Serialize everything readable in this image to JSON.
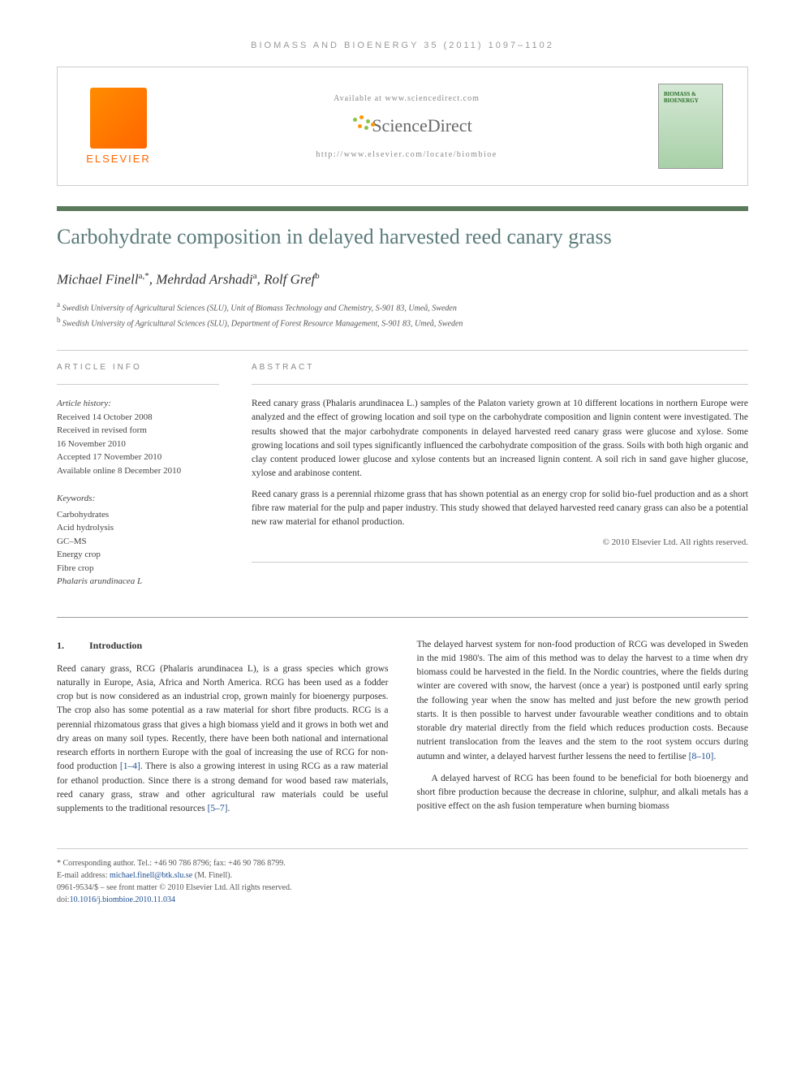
{
  "journal_header": "BIOMASS AND BIOENERGY 35 (2011) 1097–1102",
  "publisher": {
    "name": "ELSEVIER"
  },
  "header": {
    "available_at": "Available at www.sciencedirect.com",
    "platform": "ScienceDirect",
    "journal_url": "http://www.elsevier.com/locate/biombioe",
    "cover_title": "BIOMASS & BIOENERGY"
  },
  "article": {
    "title": "Carbohydrate composition in delayed harvested reed canary grass",
    "authors_line": "Michael Finell",
    "author1_sup": "a,*",
    "author2": ", Mehrdad Arshadi",
    "author2_sup": "a",
    "author3": ", Rolf Gref",
    "author3_sup": "b",
    "affiliations": {
      "a_sup": "a",
      "a": " Swedish University of Agricultural Sciences (SLU), Unit of Biomass Technology and Chemistry, S-901 83, Umeå, Sweden",
      "b_sup": "b",
      "b": " Swedish University of Agricultural Sciences (SLU), Department of Forest Resource Management, S-901 83, Umeå, Sweden"
    }
  },
  "info": {
    "label": "ARTICLE INFO",
    "history_label": "Article history:",
    "received": "Received 14 October 2008",
    "revised1": "Received in revised form",
    "revised2": "16 November 2010",
    "accepted": "Accepted 17 November 2010",
    "online": "Available online 8 December 2010",
    "keywords_label": "Keywords:",
    "kw1": "Carbohydrates",
    "kw2": "Acid hydrolysis",
    "kw3": "GC–MS",
    "kw4": "Energy crop",
    "kw5": "Fibre crop",
    "kw6": "Phalaris arundinacea L"
  },
  "abstract": {
    "label": "ABSTRACT",
    "p1": "Reed canary grass (Phalaris arundinacea L.) samples of the Palaton variety grown at 10 different locations in northern Europe were analyzed and the effect of growing location and soil type on the carbohydrate composition and lignin content were investigated. The results showed that the major carbohydrate components in delayed harvested reed canary grass were glucose and xylose. Some growing locations and soil types significantly influenced the carbohydrate composition of the grass. Soils with both high organic and clay content produced lower glucose and xylose contents but an increased lignin content. A soil rich in sand gave higher glucose, xylose and arabinose content.",
    "p2": "Reed canary grass is a perennial rhizome grass that has shown potential as an energy crop for solid bio-fuel production and as a short fibre raw material for the pulp and paper industry. This study showed that delayed harvested reed canary grass can also be a potential new raw material for ethanol production.",
    "copyright": "© 2010 Elsevier Ltd. All rights reserved."
  },
  "body": {
    "section_num": "1.",
    "section_title": "Introduction",
    "col1_p1a": "Reed canary grass, RCG (Phalaris arundinacea L), is a grass species which grows naturally in Europe, Asia, Africa and North America. RCG has been used as a fodder crop but is now considered as an industrial crop, grown mainly for bioenergy purposes. The crop also has some potential as a raw material for short fibre products. RCG is a perennial rhizomatous grass that gives a high biomass yield and it grows in both wet and dry areas on many soil types. Recently, there have been both national and international research efforts in northern Europe with the goal of increasing the use of RCG for non-food production ",
    "ref1": "[1–4]",
    "col1_p1b": ". There is also a growing interest in using RCG as a raw material for ethanol production. Since there is a strong demand for wood based raw materials, reed canary grass, straw and other agricultural raw materials could be useful supplements to the traditional resources ",
    "ref2": "[5–7]",
    "col1_p1c": ".",
    "col2_p1a": "The delayed harvest system for non-food production of RCG was developed in Sweden in the mid 1980's. The aim of this method was to delay the harvest to a time when dry biomass could be harvested in the field. In the Nordic countries, where the fields during winter are covered with snow, the harvest (once a year) is postponed until early spring the following year when the snow has melted and just before the new growth period starts. It is then possible to harvest under favourable weather conditions and to obtain storable dry material directly from the field which reduces production costs. Because nutrient translocation from the leaves and the stem to the root system occurs during autumn and winter, a delayed harvest further lessens the need to fertilise ",
    "ref3": "[8–10]",
    "col2_p1b": ".",
    "col2_p2": "A delayed harvest of RCG has been found to be beneficial for both bioenergy and short fibre production because the decrease in chlorine, sulphur, and alkali metals has a positive effect on the ash fusion temperature when burning biomass"
  },
  "footer": {
    "corr_label": "* Corresponding author.",
    "corr_tel": " Tel.: +46 90 786 8796; fax: +46 90 786 8799.",
    "email_label": "E-mail address: ",
    "email": "michael.finell@btk.slu.se",
    "email_name": " (M. Finell).",
    "issn": "0961-9534/$ – see front matter © 2010 Elsevier Ltd. All rights reserved.",
    "doi_label": "doi:",
    "doi": "10.1016/j.biombioe.2010.11.034"
  },
  "colors": {
    "title_color": "#5b7a7a",
    "bar_color": "#5b7a5b",
    "link_color": "#1a4d8f",
    "elsevier_orange": "#ff6600"
  }
}
